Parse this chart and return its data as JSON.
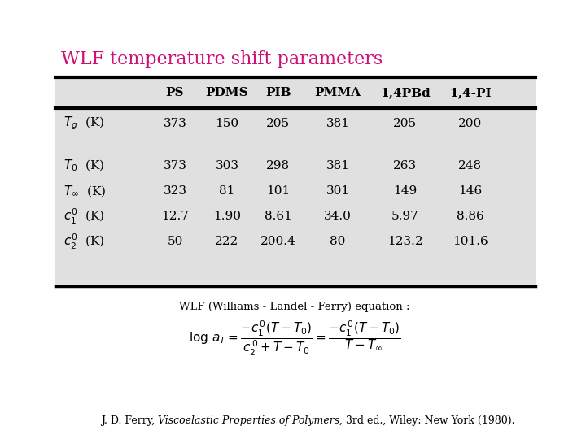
{
  "title": "WLF temperature shift parameters",
  "title_color": "#CC1177",
  "background_color": "#ffffff",
  "table_bg_color": "#e0e0e0",
  "col_headers": [
    "PS",
    "PDMS",
    "PIB",
    "PMMA",
    "1,4PBd",
    "1,4-PI"
  ],
  "table_data": [
    [
      "373",
      "150",
      "205",
      "381",
      "205",
      "200"
    ],
    [
      "373",
      "303",
      "298",
      "381",
      "263",
      "248"
    ],
    [
      "323",
      "81",
      "101",
      "301",
      "149",
      "146"
    ],
    [
      "12.7",
      "1.90",
      "8.61",
      "34.0",
      "5.97",
      "8.86"
    ],
    [
      "50",
      "222",
      "200.4",
      "80",
      "123.2",
      "101.6"
    ]
  ],
  "footer_prefix": "J. D. Ferry, ",
  "footer_italic": "Viscoelastic Properties of Polymers",
  "footer_suffix": ", 3rd ed., Wiley: New York (1980).",
  "wlf_label": "WLF (Williams - Landel - Ferry) equation :"
}
